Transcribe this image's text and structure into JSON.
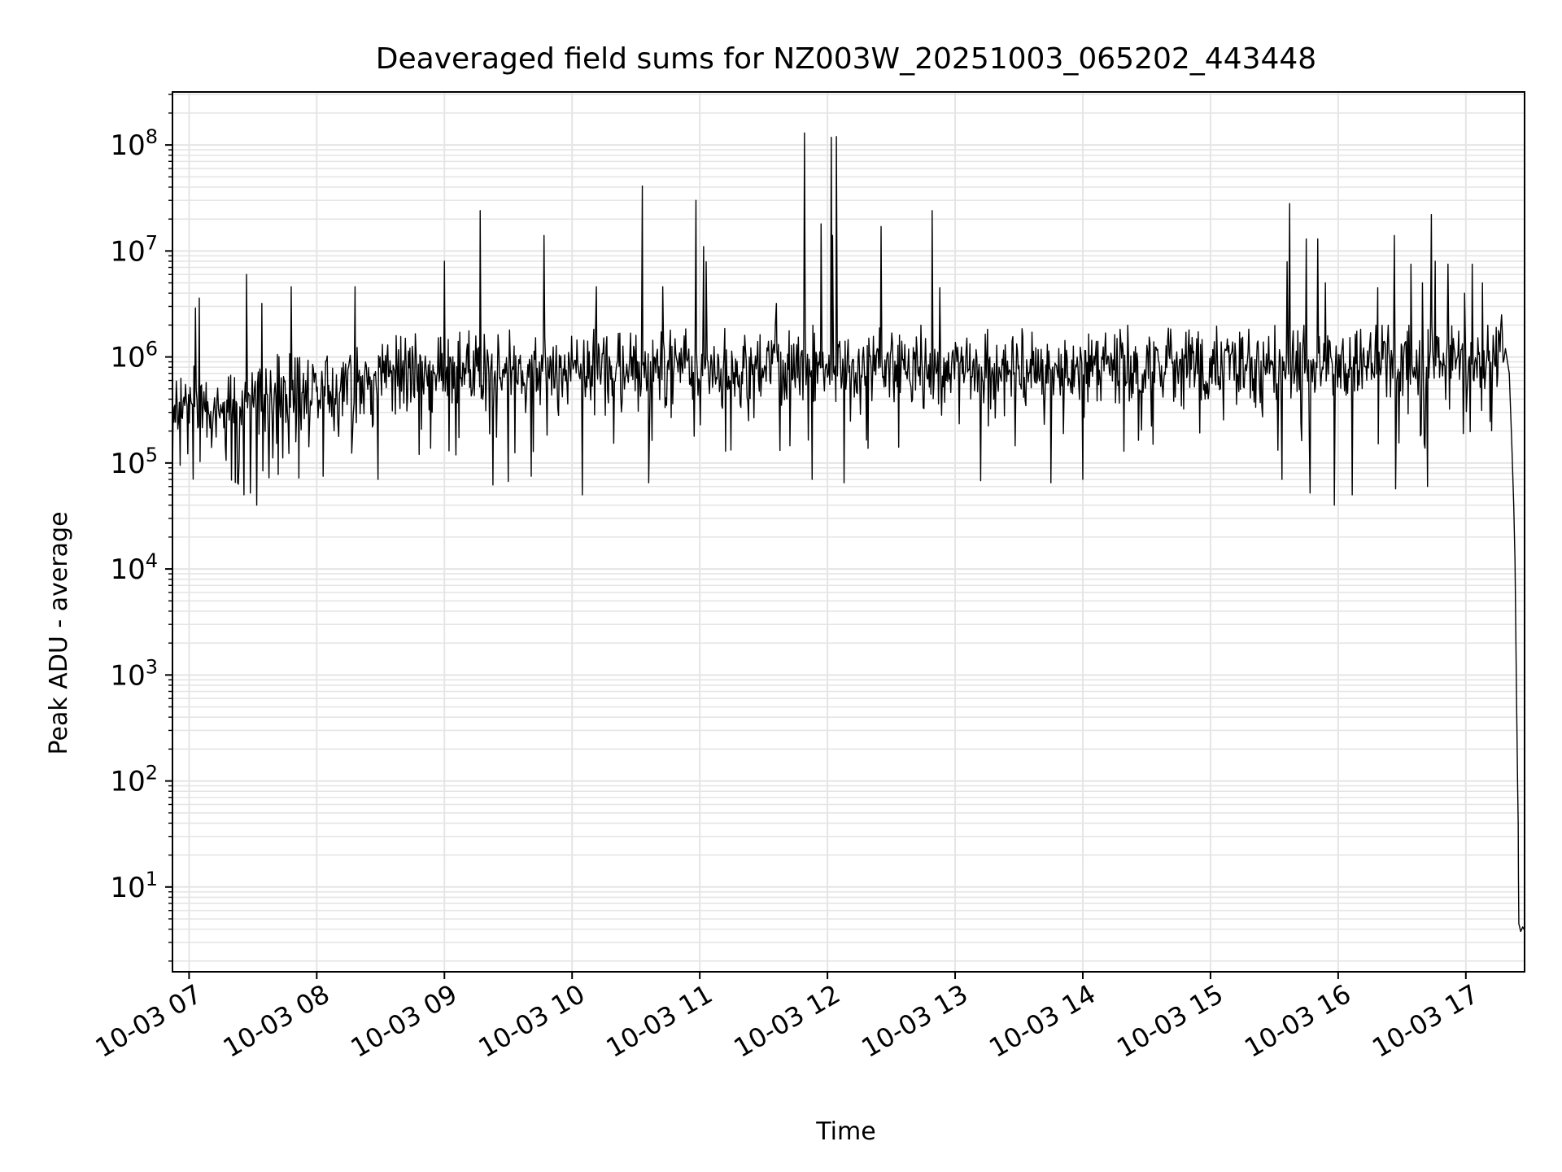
{
  "chart_data": {
    "type": "line",
    "title": "Deaveraged field sums for NZ003W_20251003_065202_443448",
    "xlabel": "Time",
    "ylabel": "Peak ADU - average",
    "yscale": "log",
    "grid": true,
    "grid_minor": true,
    "line_color": "#000000",
    "grid_color": "#e5e5e5",
    "xlim_hours": [
      6.87,
      17.46
    ],
    "ylim_log10": [
      0.2,
      8.5
    ],
    "x_ticks": [
      {
        "hour": 7,
        "label": "10-03 07"
      },
      {
        "hour": 8,
        "label": "10-03 08"
      },
      {
        "hour": 9,
        "label": "10-03 09"
      },
      {
        "hour": 10,
        "label": "10-03 10"
      },
      {
        "hour": 11,
        "label": "10-03 11"
      },
      {
        "hour": 12,
        "label": "10-03 12"
      },
      {
        "hour": 13,
        "label": "10-03 13"
      },
      {
        "hour": 14,
        "label": "10-03 14"
      },
      {
        "hour": 15,
        "label": "10-03 15"
      },
      {
        "hour": 16,
        "label": "10-03 16"
      },
      {
        "hour": 17,
        "label": "10-03 17"
      }
    ],
    "y_ticks": [
      {
        "exp": 1,
        "base": "10",
        "sup": "1"
      },
      {
        "exp": 2,
        "base": "10",
        "sup": "2"
      },
      {
        "exp": 3,
        "base": "10",
        "sup": "3"
      },
      {
        "exp": 4,
        "base": "10",
        "sup": "4"
      },
      {
        "exp": 5,
        "base": "10",
        "sup": "5"
      },
      {
        "exp": 6,
        "base": "10",
        "sup": "6"
      },
      {
        "exp": 7,
        "base": "10",
        "sup": "7"
      },
      {
        "exp": 8,
        "base": "10",
        "sup": "8"
      }
    ],
    "series": [
      {
        "name": "deaveraged field sums",
        "noise": {
          "start_hour": 6.87,
          "end_hour": 17.3,
          "step_hour": 0.006,
          "baseline_log10": [
            [
              6.87,
              5.62
            ],
            [
              7.2,
              5.5
            ],
            [
              7.6,
              5.6
            ],
            [
              8.0,
              5.75
            ],
            [
              9.0,
              5.85
            ],
            [
              11.0,
              5.88
            ],
            [
              13.0,
              5.88
            ],
            [
              15.0,
              5.9
            ],
            [
              17.2,
              5.95
            ],
            [
              17.3,
              6.05
            ]
          ],
          "low_log10": 4.8,
          "high_log10": 6.3
        },
        "spikes": [
          {
            "hour": 7.05,
            "value": 2900000
          },
          {
            "hour": 7.08,
            "value": 3600000
          },
          {
            "hour": 7.45,
            "value": 6000000
          },
          {
            "hour": 7.57,
            "value": 3200000
          },
          {
            "hour": 7.8,
            "value": 4600000
          },
          {
            "hour": 8.3,
            "value": 4600000
          },
          {
            "hour": 9.0,
            "value": 8000000
          },
          {
            "hour": 9.28,
            "value": 24000000
          },
          {
            "hour": 9.78,
            "value": 14000000
          },
          {
            "hour": 10.19,
            "value": 4600000
          },
          {
            "hour": 10.55,
            "value": 41000000
          },
          {
            "hour": 10.71,
            "value": 4600000
          },
          {
            "hour": 10.97,
            "value": 30000000
          },
          {
            "hour": 11.03,
            "value": 11000000
          },
          {
            "hour": 11.05,
            "value": 7900000
          },
          {
            "hour": 11.6,
            "value": 3200000
          },
          {
            "hour": 11.82,
            "value": 130000000
          },
          {
            "hour": 11.95,
            "value": 18000000
          },
          {
            "hour": 12.03,
            "value": 118000000
          },
          {
            "hour": 12.04,
            "value": 14000000
          },
          {
            "hour": 12.07,
            "value": 120000000
          },
          {
            "hour": 12.42,
            "value": 17000000
          },
          {
            "hour": 12.82,
            "value": 24000000
          },
          {
            "hour": 12.88,
            "value": 4500000
          },
          {
            "hour": 15.6,
            "value": 7900000
          },
          {
            "hour": 15.62,
            "value": 28000000
          },
          {
            "hour": 15.75,
            "value": 13000000
          },
          {
            "hour": 15.84,
            "value": 13000000
          },
          {
            "hour": 15.9,
            "value": 5000000
          },
          {
            "hour": 16.31,
            "value": 4500000
          },
          {
            "hour": 16.44,
            "value": 14000000
          },
          {
            "hour": 16.57,
            "value": 7500000
          },
          {
            "hour": 16.66,
            "value": 5000000
          },
          {
            "hour": 16.73,
            "value": 22000000
          },
          {
            "hour": 16.76,
            "value": 8000000
          },
          {
            "hour": 16.86,
            "value": 7500000
          },
          {
            "hour": 16.99,
            "value": 4000000
          },
          {
            "hour": 17.05,
            "value": 7500000
          },
          {
            "hour": 17.13,
            "value": 5000000
          },
          {
            "hour": 17.28,
            "value": 2500000
          }
        ],
        "dips": [
          {
            "hour": 6.87,
            "value": 73000
          },
          {
            "hour": 6.93,
            "value": 95000
          },
          {
            "hour": 7.43,
            "value": 50000
          },
          {
            "hour": 7.48,
            "value": 52000
          },
          {
            "hour": 7.53,
            "value": 40000
          },
          {
            "hour": 7.86,
            "value": 72000
          },
          {
            "hour": 8.05,
            "value": 75000
          },
          {
            "hour": 8.48,
            "value": 70000
          },
          {
            "hour": 9.38,
            "value": 62000
          },
          {
            "hour": 9.5,
            "value": 67000
          },
          {
            "hour": 9.68,
            "value": 75000
          },
          {
            "hour": 10.08,
            "value": 50000
          },
          {
            "hour": 10.6,
            "value": 65000
          },
          {
            "hour": 11.88,
            "value": 70000
          },
          {
            "hour": 12.13,
            "value": 65000
          },
          {
            "hour": 13.2,
            "value": 68000
          },
          {
            "hour": 13.75,
            "value": 65000
          },
          {
            "hour": 14.0,
            "value": 70000
          },
          {
            "hour": 15.56,
            "value": 70000
          },
          {
            "hour": 15.78,
            "value": 52000
          },
          {
            "hour": 15.97,
            "value": 40000
          },
          {
            "hour": 16.11,
            "value": 50000
          },
          {
            "hour": 16.45,
            "value": 57000
          },
          {
            "hour": 16.7,
            "value": 60000
          }
        ],
        "tail": [
          [
            17.31,
            1200000
          ],
          [
            17.34,
            700000
          ],
          [
            17.36,
            150000
          ],
          [
            17.375,
            40000
          ],
          [
            17.385,
            12000
          ],
          [
            17.395,
            1000
          ],
          [
            17.405,
            100
          ],
          [
            17.41,
            40
          ],
          [
            17.412,
            12
          ],
          [
            17.415,
            4.5
          ],
          [
            17.43,
            3.8
          ],
          [
            17.445,
            4.2
          ],
          [
            17.46,
            3.9
          ]
        ]
      }
    ]
  }
}
